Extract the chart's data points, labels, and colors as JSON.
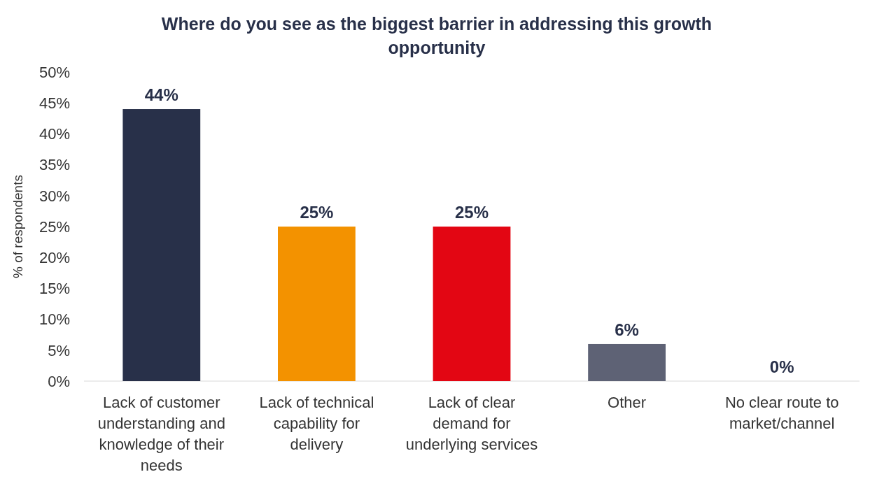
{
  "chart_data": {
    "type": "bar",
    "title": "Where do you see as the biggest barrier in addressing this growth opportunity",
    "ylabel": "% of respondents",
    "categories": [
      "Lack of customer understanding and knowledge of their needs",
      "Lack of technical capability for delivery",
      "Lack of clear demand for underlying services",
      "Other",
      "No clear route to market/channel"
    ],
    "values": [
      44,
      25,
      25,
      6,
      0
    ],
    "colors": [
      "#283049",
      "#f39200",
      "#e30613",
      "#5e6275",
      "#5e6275"
    ],
    "value_labels": [
      "44%",
      "25%",
      "25%",
      "6%",
      "0%"
    ],
    "ylim": [
      0,
      50
    ],
    "yticks": [
      {
        "value": 0,
        "label": "0%"
      },
      {
        "value": 5,
        "label": "5%"
      },
      {
        "value": 10,
        "label": "10%"
      },
      {
        "value": 15,
        "label": "15%"
      },
      {
        "value": 20,
        "label": "20%"
      },
      {
        "value": 25,
        "label": "25%"
      },
      {
        "value": 30,
        "label": "30%"
      },
      {
        "value": 35,
        "label": "35%"
      },
      {
        "value": 40,
        "label": "40%"
      },
      {
        "value": 45,
        "label": "45%"
      },
      {
        "value": 50,
        "label": "50%"
      }
    ],
    "grid": false
  }
}
